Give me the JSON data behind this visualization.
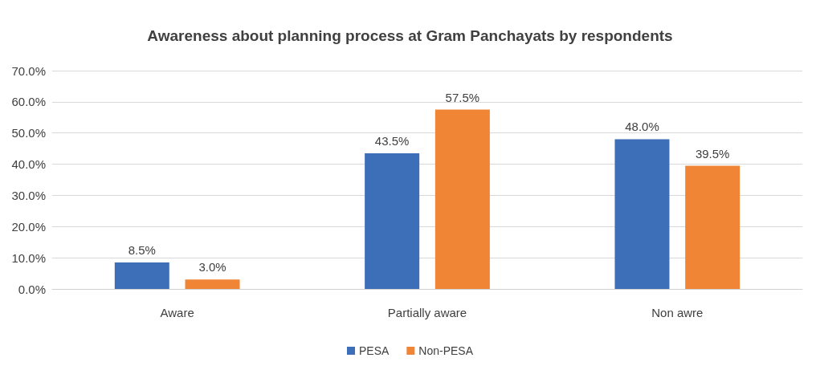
{
  "chart_data": {
    "type": "bar",
    "title": "Awareness about planning process at Gram Panchayats by respondents",
    "categories": [
      "Aware",
      "Partially aware",
      "Non awre"
    ],
    "series": [
      {
        "name": "PESA",
        "color": "#3d6fb8",
        "values": [
          8.5,
          43.5,
          48.0
        ],
        "value_labels": [
          "8.5%",
          "43.5%",
          "48.0%"
        ]
      },
      {
        "name": "Non-PESA",
        "color": "#ef8535",
        "values": [
          3.0,
          57.5,
          39.5
        ],
        "value_labels": [
          "3.0%",
          "57.5%",
          "39.5%"
        ]
      }
    ],
    "ylim": [
      0,
      70
    ],
    "yticks": [
      {
        "value": 0,
        "label": "0.0%"
      },
      {
        "value": 10,
        "label": "10.0%"
      },
      {
        "value": 20,
        "label": "20.0%"
      },
      {
        "value": 30,
        "label": "30.0%"
      },
      {
        "value": 40,
        "label": "40.0%"
      },
      {
        "value": 50,
        "label": "50.0%"
      },
      {
        "value": 60,
        "label": "60.0%"
      },
      {
        "value": 70,
        "label": "70.0%"
      }
    ],
    "grid": "y",
    "legend": "bottom"
  }
}
